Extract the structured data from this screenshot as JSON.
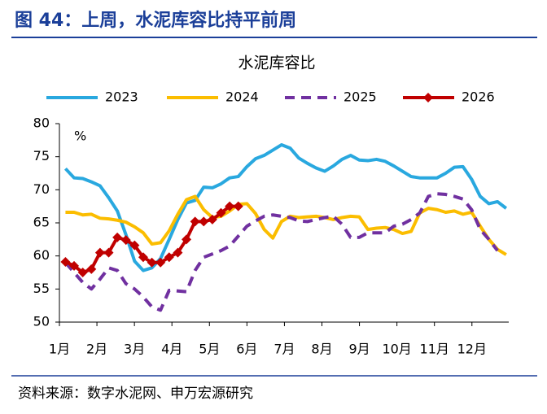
{
  "figure_title": "图 44：上周，水泥库容比持平前周",
  "source": "资料来源：数字水泥网、申万宏源研究",
  "chart_data": {
    "type": "line",
    "title": "水泥库容比",
    "ylabel": "%",
    "x": [
      1,
      2,
      3,
      4,
      5,
      6,
      7,
      8,
      9,
      10,
      11,
      12,
      13,
      14,
      15,
      16,
      17,
      18,
      19,
      20,
      21,
      22,
      23,
      24,
      25,
      26,
      27,
      28,
      29,
      30,
      31,
      32,
      33,
      34,
      35,
      36,
      37,
      38,
      39,
      40,
      41,
      42,
      43,
      44,
      45,
      46,
      47,
      48,
      49,
      50,
      51,
      52
    ],
    "xlim": [
      0.3,
      52.3
    ],
    "xticks": [
      {
        "value": 0.3,
        "label": "1月"
      },
      {
        "value": 4.64,
        "label": "2月"
      },
      {
        "value": 8.98,
        "label": "3月"
      },
      {
        "value": 13.32,
        "label": "4月"
      },
      {
        "value": 17.66,
        "label": "5月"
      },
      {
        "value": 22.0,
        "label": "6月"
      },
      {
        "value": 26.34,
        "label": "7月"
      },
      {
        "value": 30.68,
        "label": "8月"
      },
      {
        "value": 35.02,
        "label": "9月"
      },
      {
        "value": 39.36,
        "label": "10月"
      },
      {
        "value": 43.7,
        "label": "11月"
      },
      {
        "value": 48.04,
        "label": "12月"
      }
    ],
    "ylim": [
      50,
      80
    ],
    "yticks": [
      50,
      55,
      60,
      65,
      70,
      75,
      80
    ],
    "series": [
      {
        "name": "2023",
        "color": "#29a8df",
        "line_style": "solid",
        "values": [
          73.2,
          71.8,
          71.7,
          71.2,
          70.6,
          68.8,
          66.8,
          63.2,
          59.2,
          57.8,
          58.2,
          59.6,
          62.5,
          65.5,
          68.0,
          68.4,
          70.4,
          70.3,
          70.9,
          71.8,
          72.0,
          73.5,
          74.7,
          75.2,
          76.0,
          76.8,
          76.3,
          74.8,
          74.0,
          73.3,
          72.8,
          73.6,
          74.6,
          75.2,
          74.5,
          74.4,
          74.6,
          74.3,
          73.6,
          72.8,
          72.0,
          71.8,
          71.8,
          71.8,
          72.5,
          73.4,
          73.5,
          71.6,
          69.0,
          67.9,
          68.2,
          67.2
        ]
      },
      {
        "name": "2024",
        "color": "#fbbd00",
        "line_style": "solid",
        "values": [
          66.6,
          66.6,
          66.2,
          66.3,
          65.7,
          65.6,
          65.4,
          65.1,
          64.4,
          63.5,
          61.8,
          62.0,
          63.8,
          66.3,
          68.5,
          69.0,
          67.0,
          65.8,
          66.0,
          66.8,
          67.8,
          67.9,
          66.4,
          64.0,
          62.7,
          65.2,
          66.0,
          65.8,
          65.9,
          66.0,
          65.8,
          65.5,
          65.8,
          66.0,
          65.9,
          64.0,
          64.2,
          64.3,
          64.0,
          63.4,
          63.7,
          66.5,
          67.2,
          67.0,
          66.6,
          66.8,
          66.3,
          66.6,
          64.5,
          62.5,
          61.0,
          60.2
        ]
      },
      {
        "name": "2025",
        "color": "#7030a0",
        "line_style": "dashed",
        "values": [
          59.0,
          57.5,
          56.0,
          55.0,
          56.5,
          58.2,
          57.8,
          55.8,
          55.0,
          53.8,
          52.3,
          51.8,
          54.8,
          54.7,
          54.6,
          57.8,
          59.8,
          60.3,
          60.8,
          61.5,
          63.0,
          64.5,
          65.3,
          66.0,
          66.2,
          66.0,
          65.8,
          65.3,
          65.2,
          65.5,
          65.8,
          66.0,
          64.8,
          62.8,
          62.8,
          63.5,
          63.5,
          63.5,
          64.5,
          64.8,
          65.5,
          66.5,
          69.0,
          69.4,
          69.3,
          69.0,
          68.6,
          67.0,
          64.0,
          62.5,
          60.8,
          null
        ]
      },
      {
        "name": "2026",
        "color": "#c00000",
        "line_style": "solid",
        "marker": "diamond",
        "values": [
          59.1,
          58.5,
          57.5,
          58.0,
          60.5,
          60.5,
          62.8,
          62.4,
          61.6,
          59.8,
          59.0,
          59.0,
          59.8,
          60.5,
          62.5,
          65.2,
          65.2,
          65.5,
          66.5,
          67.5,
          67.5,
          null,
          null,
          null,
          null,
          null,
          null,
          null,
          null,
          null,
          null,
          null,
          null,
          null,
          null,
          null,
          null,
          null,
          null,
          null,
          null,
          null,
          null,
          null,
          null,
          null,
          null,
          null,
          null,
          null,
          null,
          null
        ]
      }
    ]
  }
}
